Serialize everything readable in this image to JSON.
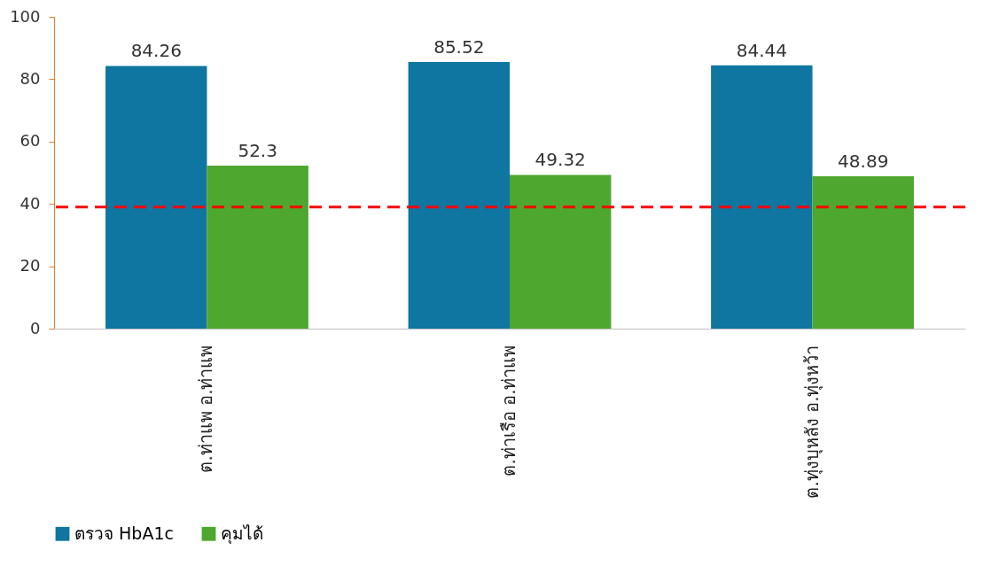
{
  "chart_data": {
    "type": "bar",
    "categories": [
      "ต.ท่าแพ อ.ท่าแพ",
      "ต.ท่าเรือ อ.ท่าแพ",
      "ต.ทุ่งบุหลัง อ.ทุ่งหว้า"
    ],
    "series": [
      {
        "name": "ตรวจ HbA1c",
        "color": "#0e76a0",
        "values": [
          84.26,
          85.52,
          84.44
        ]
      },
      {
        "name": "คุมได้",
        "color": "#4ea72e",
        "values": [
          52.3,
          49.32,
          48.89
        ]
      }
    ],
    "ylim": [
      0,
      100
    ],
    "yticks": [
      0,
      20,
      40,
      60,
      80,
      100
    ],
    "grid": false,
    "legend": "bottom",
    "data_labels": true,
    "ref_lines": [
      {
        "axis": "y",
        "value": 39,
        "color": "#ff0000",
        "line_style": "dashed"
      }
    ]
  }
}
